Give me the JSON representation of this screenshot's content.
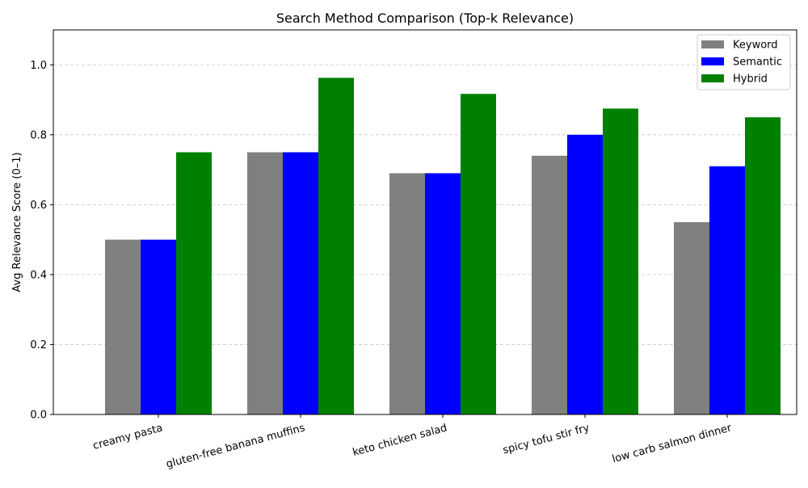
{
  "chart_data": {
    "type": "bar",
    "title": "Search Method Comparison (Top-k Relevance)",
    "xlabel": "",
    "ylabel": "Avg Relevance Score (0–1)",
    "categories": [
      "creamy pasta",
      "gluten-free banana muffins",
      "keto chicken salad",
      "spicy tofu stir fry",
      "low carb salmon dinner"
    ],
    "series": [
      {
        "name": "Keyword",
        "color": "#808080",
        "values": [
          0.5,
          0.75,
          0.69,
          0.74,
          0.55
        ]
      },
      {
        "name": "Semantic",
        "color": "#0000ff",
        "values": [
          0.5,
          0.75,
          0.69,
          0.8,
          0.71
        ]
      },
      {
        "name": "Hybrid",
        "color": "#008000",
        "values": [
          0.75,
          0.963,
          0.917,
          0.875,
          0.85
        ]
      }
    ],
    "ylim": [
      0,
      1.1
    ],
    "yticks": [
      "0.0",
      "0.2",
      "0.4",
      "0.6",
      "0.8",
      "1.0"
    ],
    "grid": "y-dashed",
    "legend_position": "top-right"
  }
}
